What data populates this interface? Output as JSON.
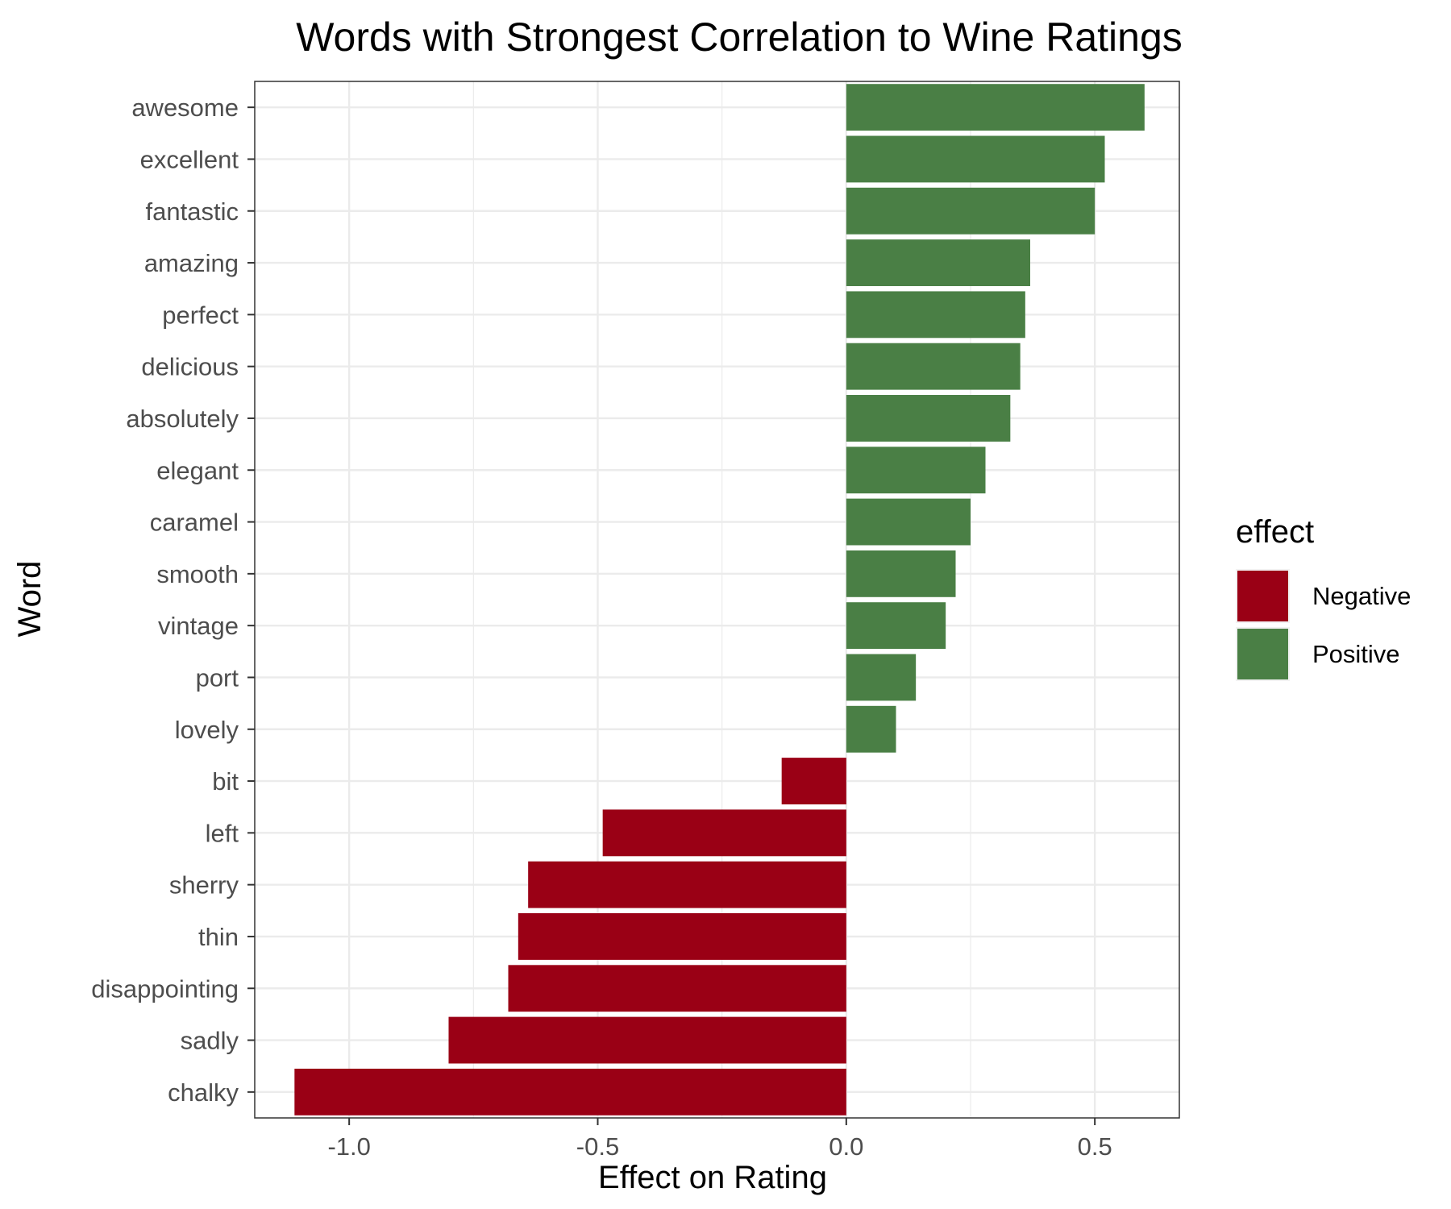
{
  "chart_data": {
    "type": "bar",
    "orientation": "horizontal",
    "title": "Words with Strongest Correlation to Wine Ratings",
    "xlabel": "Effect on Rating",
    "ylabel": "Word",
    "xlim": [
      -1.19,
      0.67
    ],
    "xticks": [
      -1.0,
      -0.5,
      0.0,
      0.5
    ],
    "xtick_labels": [
      "-1.0",
      "-0.5",
      "0.0",
      "0.5"
    ],
    "grid": true,
    "legend": {
      "title": "effect",
      "position": "right",
      "entries": [
        {
          "label": "Negative",
          "color": "#9A0015"
        },
        {
          "label": "Positive",
          "color": "#4A7F45"
        }
      ]
    },
    "categories": [
      "awesome",
      "excellent",
      "fantastic",
      "amazing",
      "perfect",
      "delicious",
      "absolutely",
      "elegant",
      "caramel",
      "smooth",
      "vintage",
      "port",
      "lovely",
      "bit",
      "left",
      "sherry",
      "thin",
      "disappointing",
      "sadly",
      "chalky"
    ],
    "values": [
      0.6,
      0.52,
      0.5,
      0.37,
      0.36,
      0.35,
      0.33,
      0.28,
      0.25,
      0.22,
      0.2,
      0.14,
      0.1,
      -0.13,
      -0.49,
      -0.64,
      -0.66,
      -0.68,
      -0.8,
      -1.11
    ],
    "effect": [
      "Positive",
      "Positive",
      "Positive",
      "Positive",
      "Positive",
      "Positive",
      "Positive",
      "Positive",
      "Positive",
      "Positive",
      "Positive",
      "Positive",
      "Positive",
      "Negative",
      "Negative",
      "Negative",
      "Negative",
      "Negative",
      "Negative",
      "Negative"
    ]
  }
}
